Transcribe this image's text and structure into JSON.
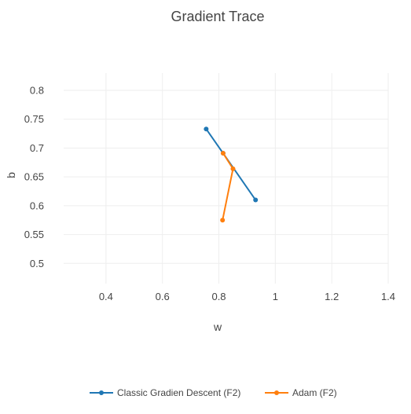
{
  "chart_data": {
    "type": "line",
    "title": "Gradient Trace",
    "xlabel": "w",
    "ylabel": "b",
    "xlim": [
      0.25,
      1.4
    ],
    "ylim": [
      0.465,
      0.83
    ],
    "x_ticks": [
      0.4,
      0.6,
      0.8,
      1,
      1.2,
      1.4
    ],
    "x_tick_labels": [
      "0.4",
      "0.6",
      "0.8",
      "1",
      "1.2",
      "1.4"
    ],
    "y_ticks": [
      0.5,
      0.55,
      0.6,
      0.65,
      0.7,
      0.75,
      0.8
    ],
    "y_tick_labels": [
      "0.5",
      "0.55",
      "0.6",
      "0.65",
      "0.7",
      "0.75",
      "0.8"
    ],
    "grid": true,
    "legend_position": "bottom-center",
    "series": [
      {
        "name": "Classic Gradien Descent (F2)",
        "color": "#1f77b4",
        "x": [
          0.755,
          0.815,
          0.93
        ],
        "y": [
          0.733,
          0.691,
          0.61
        ]
      },
      {
        "name": "Adam (F2)",
        "color": "#ff7f0e",
        "x": [
          0.815,
          0.85,
          0.813
        ],
        "y": [
          0.691,
          0.664,
          0.575
        ]
      }
    ]
  }
}
